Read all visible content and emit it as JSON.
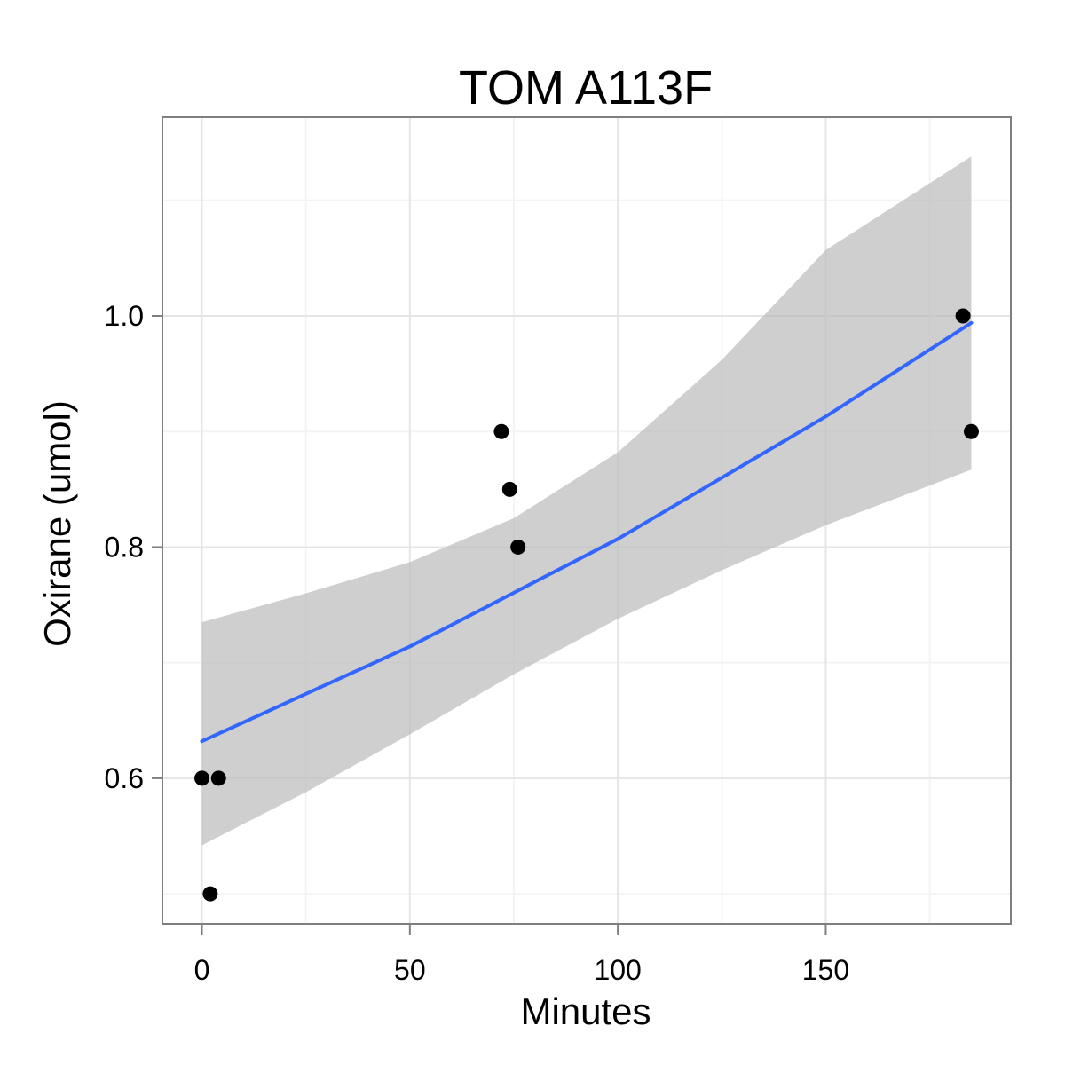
{
  "chart_data": {
    "type": "scatter",
    "title": "TOM A113F",
    "xlabel": "Minutes",
    "ylabel": "Oxirane (umol)",
    "xlim": [
      -9.5,
      194.5
    ],
    "ylim": [
      0.474,
      1.172
    ],
    "x_ticks": [
      0,
      50,
      100,
      150
    ],
    "y_ticks": [
      0.6,
      0.8,
      1.0
    ],
    "x_tick_labels": [
      "0",
      "50",
      "100",
      "150"
    ],
    "y_tick_labels": [
      "0.6",
      "0.8",
      "1.0"
    ],
    "grid": true,
    "legend": "none",
    "points": [
      {
        "x": 0,
        "y": 0.6
      },
      {
        "x": 2,
        "y": 0.5
      },
      {
        "x": 4,
        "y": 0.6
      },
      {
        "x": 72,
        "y": 0.9
      },
      {
        "x": 74,
        "y": 0.85
      },
      {
        "x": 76,
        "y": 0.8
      },
      {
        "x": 183,
        "y": 1.0
      },
      {
        "x": 185,
        "y": 0.9
      }
    ],
    "fit_line": [
      {
        "x": 0,
        "y": 0.632
      },
      {
        "x": 50,
        "y": 0.714
      },
      {
        "x": 100,
        "y": 0.807
      },
      {
        "x": 150,
        "y": 0.913
      },
      {
        "x": 185,
        "y": 0.994
      }
    ],
    "confidence_band": [
      {
        "x": 0,
        "lower": 0.542,
        "upper": 0.735
      },
      {
        "x": 25,
        "lower": 0.588,
        "upper": 0.76
      },
      {
        "x": 50,
        "lower": 0.638,
        "upper": 0.787
      },
      {
        "x": 75,
        "lower": 0.69,
        "upper": 0.825
      },
      {
        "x": 100,
        "lower": 0.738,
        "upper": 0.882
      },
      {
        "x": 125,
        "lower": 0.78,
        "upper": 0.962
      },
      {
        "x": 150,
        "lower": 0.819,
        "upper": 1.057
      },
      {
        "x": 185,
        "lower": 0.867,
        "upper": 1.138
      }
    ],
    "colors": {
      "panel_background": "#ffffff",
      "panel_border": "#7f7f7f",
      "grid_major": "#e5e5e5",
      "grid_minor": "#f4f4f4",
      "band": "#bdbdbd",
      "line": "#3366ff",
      "point": "#000000",
      "text": "#000000"
    }
  }
}
